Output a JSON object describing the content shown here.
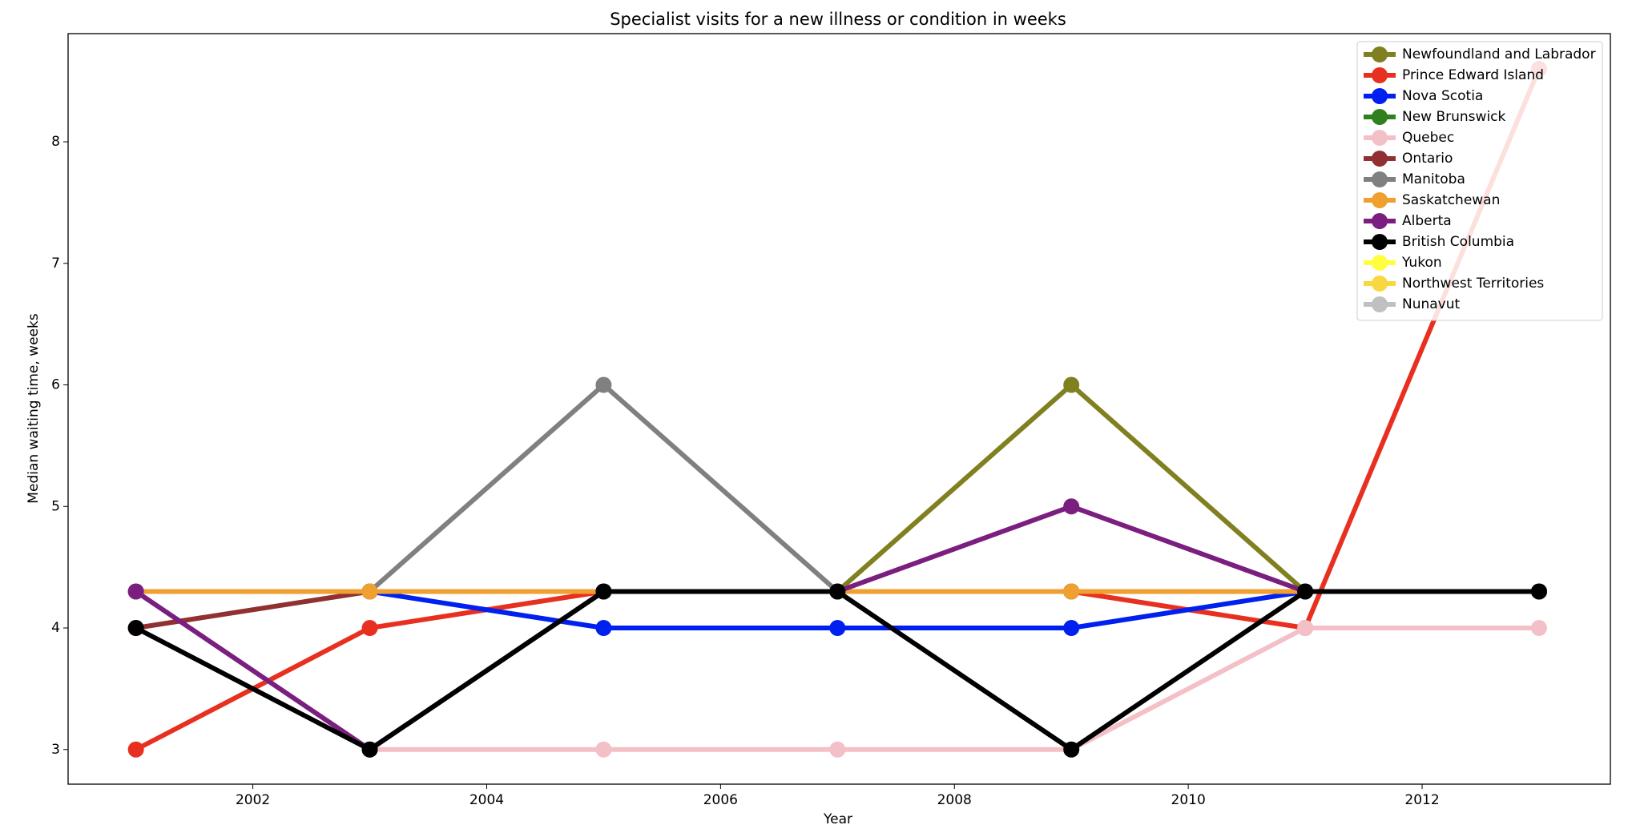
{
  "chart_data": {
    "type": "line",
    "title": "Specialist visits for a new illness or condition in weeks",
    "x_label": "Year",
    "y_label": "Median waiting time, weeks",
    "x": [
      2001,
      2003,
      2005,
      2007,
      2009,
      2011,
      2013
    ],
    "xlim": [
      2000.42,
      2013.61
    ],
    "xticks": [
      2002,
      2004,
      2006,
      2008,
      2010,
      2012
    ],
    "ylim": [
      2.715,
      8.89
    ],
    "yticks": [
      3,
      4,
      5,
      6,
      7,
      8
    ],
    "legend": "upper right",
    "series": [
      {
        "name": "Newfoundland and Labrador",
        "color": "#808020",
        "values": [
          4.3,
          4.3,
          4.3,
          4.3,
          6,
          4.3,
          4.3
        ]
      },
      {
        "name": "Prince Edward Island",
        "color": "#e83020",
        "values": [
          3,
          4,
          4.3,
          4.3,
          4.3,
          4,
          8.6
        ]
      },
      {
        "name": "Nova Scotia",
        "color": "#0020f0",
        "values": [
          4.3,
          4.3,
          4,
          4,
          4,
          4.3,
          4.3
        ]
      },
      {
        "name": "New Brunswick",
        "color": "#308020",
        "values": [
          4.3,
          4.3,
          4.3,
          4.3,
          4.3,
          4.3,
          4.3
        ]
      },
      {
        "name": "Quebec",
        "color": "#f4c0c8",
        "values": [
          4.3,
          3,
          3,
          3,
          3,
          4,
          4
        ]
      },
      {
        "name": "Ontario",
        "color": "#903030",
        "values": [
          4,
          4.3,
          4.3,
          4.3,
          4.3,
          4.3,
          4.3
        ]
      },
      {
        "name": "Manitoba",
        "color": "#808080",
        "values": [
          4.3,
          4.3,
          6,
          4.3,
          4.3,
          4.3,
          4.3
        ]
      },
      {
        "name": "Saskatchewan",
        "color": "#f0a030",
        "values": [
          4.3,
          4.3,
          4.3,
          4.3,
          4.3,
          4.3,
          4.3
        ]
      },
      {
        "name": "Alberta",
        "color": "#7a1f80",
        "values": [
          4.3,
          3,
          4.3,
          4.3,
          5,
          4.3,
          4.3
        ]
      },
      {
        "name": "British Columbia",
        "color": "#000000",
        "values": [
          4,
          3,
          4.3,
          4.3,
          3,
          4.3,
          4.3
        ]
      },
      {
        "name": "Yukon",
        "color": "#ffff40",
        "values": [
          null,
          null,
          null,
          null,
          null,
          null,
          null
        ]
      },
      {
        "name": "Northwest Territories",
        "color": "#f8d840",
        "values": [
          null,
          null,
          null,
          null,
          null,
          null,
          null
        ]
      },
      {
        "name": "Nunavut",
        "color": "#c0c0c0",
        "values": [
          null,
          null,
          null,
          null,
          null,
          null,
          null
        ]
      }
    ]
  }
}
